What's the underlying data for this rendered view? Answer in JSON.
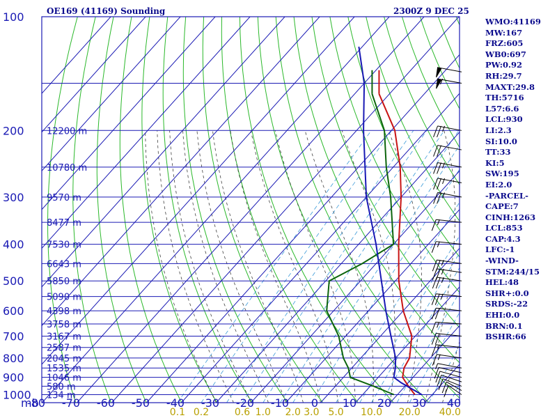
{
  "header": {
    "station": "OE169 (41169) Sounding",
    "time": "2300Z  9 DEC 25"
  },
  "indices": [
    "WMO:41169",
    "MW:167",
    "FRZ:605",
    "WB0:697",
    "PW:0.92",
    "RH:29.7",
    "MAXT:29.8",
    "TH:5716",
    "L57:6.6",
    "LCL:930",
    "LI:2.3",
    "SI:10.0",
    "TT:33",
    "KI:5",
    "SW:195",
    "EI:2.0",
    "-PARCEL-",
    "CAPE:7",
    "CINH:1263",
    "LCL:853",
    "CAP:4.3",
    "LFC:-1",
    "-WIND-",
    "STM:244/15",
    "HEL:48",
    "SHR+:0.0",
    "SRDS:-22",
    "EHI:0.0",
    "BRN:0.1",
    "BSHR:66"
  ],
  "colors": {
    "isobar": "#1a1ab4",
    "isotherm": "#1a1ab4",
    "dry_adiabat": "#2ab82a",
    "moist_adiabat": "#404040",
    "mixing_ratio": "#3a9ad8",
    "temperature": "#c81414",
    "dewpoint": "#0c640c",
    "parcel": "#1818b4",
    "wind": "#000000"
  },
  "chart_data": {
    "type": "skew-t log-p",
    "title": "OE169 (41169) Sounding",
    "xlabel": "mb",
    "ylabel": "",
    "pressure_range": [
      1050,
      100
    ],
    "temperature_range": [
      -80,
      40
    ],
    "pressure_ticks": [
      1000,
      900,
      800,
      700,
      600,
      500,
      400,
      300,
      200,
      100
    ],
    "temperature_ticks": [
      "-80",
      "-70",
      "-60",
      "-50",
      "-40",
      "-30",
      "-20",
      "-10",
      "0",
      "10",
      "20",
      "30",
      "40"
    ],
    "height_labels": [
      {
        "p": 1000,
        "label": "134 m"
      },
      {
        "p": 950,
        "label": "580 m"
      },
      {
        "p": 900,
        "label": "1046 m"
      },
      {
        "p": 850,
        "label": "1535 m"
      },
      {
        "p": 800,
        "label": "2045 m"
      },
      {
        "p": 750,
        "label": "2587 m"
      },
      {
        "p": 700,
        "label": "3167 m"
      },
      {
        "p": 650,
        "label": "3758 m"
      },
      {
        "p": 600,
        "label": "4398 m"
      },
      {
        "p": 550,
        "label": "5090 m"
      },
      {
        "p": 500,
        "label": "5850 m"
      },
      {
        "p": 450,
        "label": "6643 m"
      },
      {
        "p": 400,
        "label": "7530 m"
      },
      {
        "p": 350,
        "label": "8477 m"
      },
      {
        "p": 300,
        "label": "9570 m"
      },
      {
        "p": 250,
        "label": "10780 m"
      },
      {
        "p": 200,
        "label": "12200 m"
      }
    ],
    "mixing_ratio_labels": [
      {
        "w": 0.1,
        "label": "0.1"
      },
      {
        "w": 0.2,
        "label": "0.2"
      },
      {
        "w": 0.6,
        "label": "0.6"
      },
      {
        "w": 1.0,
        "label": "1.0"
      },
      {
        "w": 2.0,
        "label": "2.0"
      },
      {
        "w": 3.0,
        "label": "3.0"
      },
      {
        "w": 5.0,
        "label": "5.0"
      },
      {
        "w": 10.0,
        "label": "10.0"
      },
      {
        "w": 20.0,
        "label": "20.0"
      },
      {
        "w": 40.0,
        "label": "40.0"
      }
    ],
    "series": [
      {
        "name": "temperature",
        "points": [
          {
            "p": 1000,
            "t": 25.0
          },
          {
            "p": 950,
            "t": 21.0
          },
          {
            "p": 900,
            "t": 17.0
          },
          {
            "p": 850,
            "t": 15.0
          },
          {
            "p": 800,
            "t": 14.0
          },
          {
            "p": 700,
            "t": 9.0
          },
          {
            "p": 600,
            "t": 0.0
          },
          {
            "p": 500,
            "t": -9.0
          },
          {
            "p": 400,
            "t": -18.5
          },
          {
            "p": 300,
            "t": -30.0
          },
          {
            "p": 250,
            "t": -38.0
          },
          {
            "p": 200,
            "t": -49.0
          },
          {
            "p": 160,
            "t": -63.0
          }
        ]
      },
      {
        "name": "dewpoint",
        "points": [
          {
            "p": 1000,
            "t": 19.0
          },
          {
            "p": 950,
            "t": 11.0
          },
          {
            "p": 900,
            "t": 2.0
          },
          {
            "p": 850,
            "t": -1.0
          },
          {
            "p": 800,
            "t": -5.0
          },
          {
            "p": 700,
            "t": -12.0
          },
          {
            "p": 600,
            "t": -22.0
          },
          {
            "p": 500,
            "t": -29.0
          },
          {
            "p": 450,
            "t": -24.0
          },
          {
            "p": 400,
            "t": -20.0
          },
          {
            "p": 300,
            "t": -33.0
          },
          {
            "p": 250,
            "t": -42.0
          },
          {
            "p": 200,
            "t": -52.0
          },
          {
            "p": 160,
            "t": -65.0
          }
        ]
      },
      {
        "name": "parcel",
        "points": [
          {
            "p": 1000,
            "t": 27.0
          },
          {
            "p": 930,
            "t": 18.0
          },
          {
            "p": 900,
            "t": 14.5
          },
          {
            "p": 850,
            "t": 12.5
          },
          {
            "p": 800,
            "t": 10.0
          },
          {
            "p": 700,
            "t": 3.0
          },
          {
            "p": 600,
            "t": -5.0
          },
          {
            "p": 500,
            "t": -14.0
          },
          {
            "p": 400,
            "t": -25.0
          },
          {
            "p": 300,
            "t": -40.0
          },
          {
            "p": 200,
            "t": -58.0
          },
          {
            "p": 150,
            "t": -70.0
          },
          {
            "p": 120,
            "t": -81.0
          }
        ]
      }
    ],
    "winds": [
      {
        "p": 1000,
        "dir": 210,
        "spd": 10
      },
      {
        "p": 975,
        "dir": 215,
        "spd": 10
      },
      {
        "p": 950,
        "dir": 225,
        "spd": 10
      },
      {
        "p": 925,
        "dir": 230,
        "spd": 10
      },
      {
        "p": 900,
        "dir": 235,
        "spd": 10
      },
      {
        "p": 875,
        "dir": 240,
        "spd": 10
      },
      {
        "p": 850,
        "dir": 245,
        "spd": 5
      },
      {
        "p": 800,
        "dir": 250,
        "spd": 15
      },
      {
        "p": 750,
        "dir": 255,
        "spd": 15
      },
      {
        "p": 700,
        "dir": 255,
        "spd": 20
      },
      {
        "p": 650,
        "dir": 260,
        "spd": 15
      },
      {
        "p": 600,
        "dir": 255,
        "spd": 20
      },
      {
        "p": 550,
        "dir": 255,
        "spd": 25
      },
      {
        "p": 500,
        "dir": 250,
        "spd": 25
      },
      {
        "p": 475,
        "dir": 250,
        "spd": 25
      },
      {
        "p": 450,
        "dir": 250,
        "spd": 25
      },
      {
        "p": 400,
        "dir": 255,
        "spd": 15
      },
      {
        "p": 350,
        "dir": 255,
        "spd": 15
      },
      {
        "p": 300,
        "dir": 245,
        "spd": 25
      },
      {
        "p": 275,
        "dir": 245,
        "spd": 25
      },
      {
        "p": 250,
        "dir": 245,
        "spd": 25
      },
      {
        "p": 225,
        "dir": 245,
        "spd": 20
      },
      {
        "p": 200,
        "dir": 245,
        "spd": 25
      },
      {
        "p": 150,
        "dir": 245,
        "spd": 55
      },
      {
        "p": 140,
        "dir": 245,
        "spd": 50
      }
    ]
  }
}
